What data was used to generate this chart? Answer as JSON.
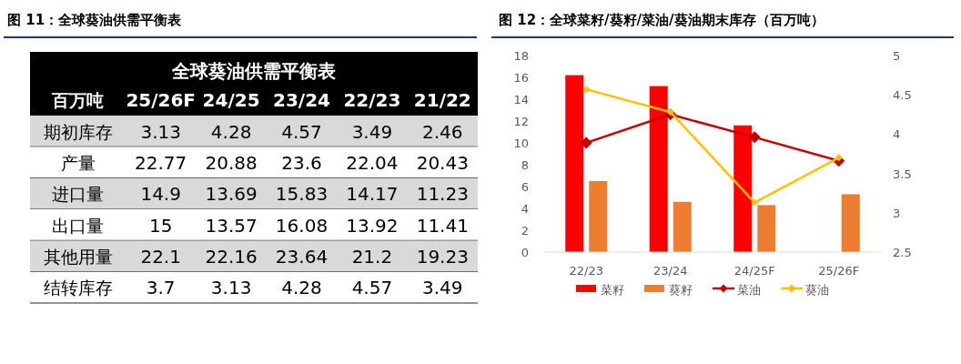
{
  "chart_data": [
    {
      "type": "heatmap",
      "title": "图 11：全球葵油供需平衡表",
      "subtitle": "全球葵油供需平衡表",
      "ylabel": "百万吨",
      "categories": [
        "25/26F",
        "24/25",
        "23/24",
        "22/23",
        "21/22"
      ],
      "y_categories": [
        "期初库存",
        "产量",
        "进口量",
        "出口量",
        "其他用量",
        "结转库存"
      ],
      "cells": [
        [
          3.13,
          4.28,
          4.57,
          3.49,
          2.46
        ],
        [
          22.77,
          20.88,
          23.6,
          22.04,
          20.43
        ],
        [
          14.9,
          13.69,
          15.83,
          14.17,
          11.23
        ],
        [
          15,
          13.57,
          16.08,
          13.92,
          11.41
        ],
        [
          22.1,
          22.16,
          23.64,
          21.2,
          19.23
        ],
        [
          3.7,
          3.13,
          4.28,
          4.57,
          3.49
        ]
      ],
      "data_labels": true
    },
    {
      "type": "bar",
      "title": "图 12：全球菜籽/葵籽/菜油/葵油期末库存（百万吨）",
      "categories": [
        "22/23",
        "23/24",
        "24/25F",
        "25/26F"
      ],
      "series": [
        {
          "name": "菜籽",
          "type": "bar",
          "color": "#ff0000",
          "values": [
            16.2,
            15.2,
            11.6,
            null
          ]
        },
        {
          "name": "葵籽",
          "type": "bar",
          "color": "#ed7d31",
          "values": [
            6.5,
            4.6,
            4.3,
            5.3
          ]
        },
        {
          "name": "菜油",
          "type": "line",
          "axis": "y2",
          "marker": "diamond",
          "color": "#c00000",
          "values": [
            3.89,
            4.25,
            3.96,
            3.66
          ]
        },
        {
          "name": "葵油",
          "type": "line",
          "axis": "y2",
          "marker": "diamond",
          "color": "#ffc000",
          "values": [
            4.57,
            4.28,
            3.13,
            3.7
          ]
        }
      ],
      "ylim": [
        0,
        18
      ],
      "yticks": [
        0,
        2,
        4,
        6,
        8,
        10,
        12,
        14,
        16,
        18
      ],
      "y2lim": [
        2.5,
        5
      ],
      "y2ticks": [
        2.5,
        3,
        3.5,
        4,
        4.5,
        5
      ],
      "legend": "bottom",
      "grid": false
    }
  ]
}
